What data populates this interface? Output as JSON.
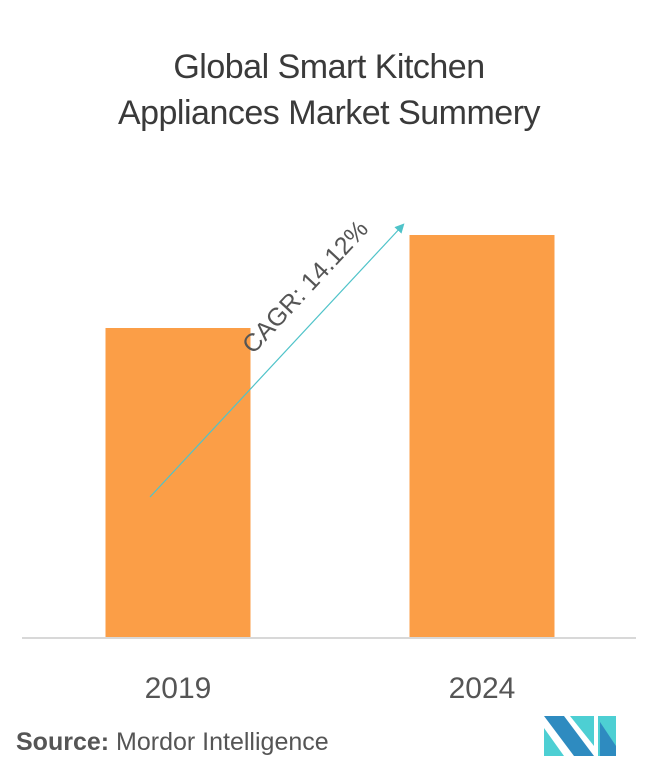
{
  "title_lines": [
    "Global Smart Kitchen",
    "Appliances Market Summery"
  ],
  "source": {
    "label": "Source:",
    "value": "Mordor Intelligence"
  },
  "colors": {
    "bar": "#FB9E47",
    "arrow": "#4FC3C9",
    "axis": "#d8d8d8",
    "text": "#555555",
    "logo_dark": "#2E8BC0",
    "logo_light": "#4DCFD3"
  },
  "chart_data": {
    "type": "bar",
    "title": "Global Smart Kitchen Appliances Market Summery",
    "categories": [
      "2019",
      "2024"
    ],
    "values": [
      310,
      403
    ],
    "value_units": "relative (no axis shown)",
    "ylim": [
      0,
      410
    ],
    "xlabel": "",
    "ylabel": "",
    "grid": false,
    "annotation": "CAGR: 14.12%"
  }
}
